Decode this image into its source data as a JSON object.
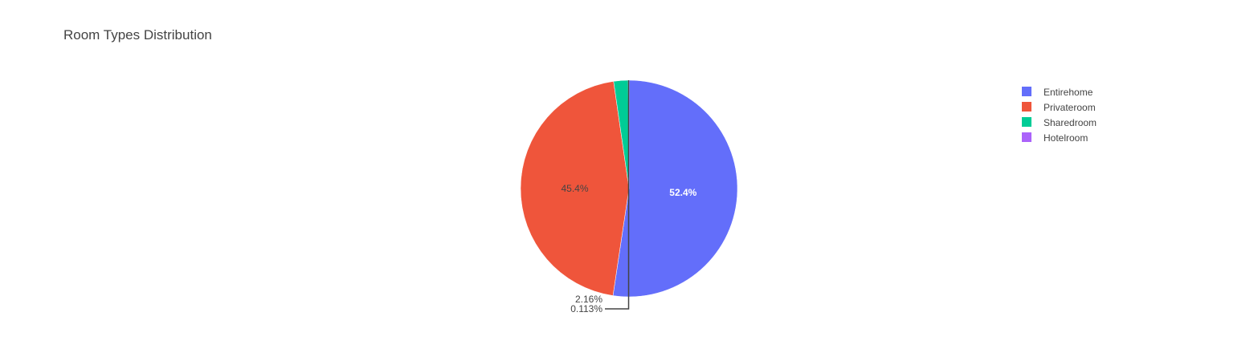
{
  "chart_data": {
    "type": "pie",
    "title": "Room Types Distribution",
    "categories": [
      "Entirehome",
      "Privateroom",
      "Sharedroom",
      "Hotelroom"
    ],
    "values": [
      52.4,
      45.4,
      2.16,
      0.113
    ],
    "value_labels": [
      "52.4%",
      "45.4%",
      "2.16%",
      "0.113%"
    ],
    "colors": [
      "#636efa",
      "#ef553b",
      "#00cc96",
      "#ab63fa"
    ],
    "legend_position": "top-right",
    "direction": "clockwise",
    "start": "top"
  }
}
